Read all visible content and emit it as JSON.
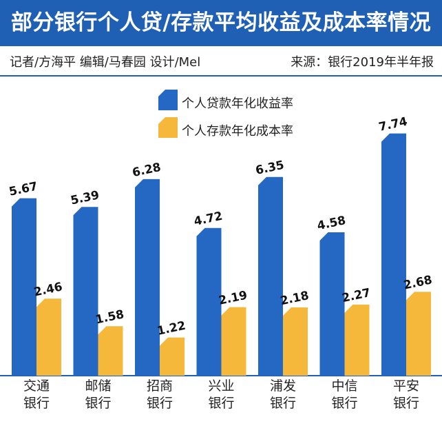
{
  "header": {
    "title": "部分银行个人贷/存款平均收益及成本率情况",
    "credits": "记者/方海平  编辑/马春园  设计/Mel",
    "source": "来源：银行2019年半年报"
  },
  "colors": {
    "header_bg": "#1f5fb4",
    "loan": "#2468c4",
    "deposit": "#f5b83a"
  },
  "chart_data": {
    "type": "bar",
    "title": "部分银行个人贷/存款平均收益及成本率情况",
    "categories": [
      [
        "交通",
        "银行"
      ],
      [
        "邮储",
        "银行"
      ],
      [
        "招商",
        "银行"
      ],
      [
        "兴业",
        "银行"
      ],
      [
        "浦发",
        "银行"
      ],
      [
        "中信",
        "银行"
      ],
      [
        "平安",
        "银行"
      ]
    ],
    "series": [
      {
        "name": "个人贷款年化收益率",
        "values": [
          5.67,
          5.39,
          6.28,
          4.72,
          6.35,
          4.58,
          7.74
        ],
        "color": "#2468c4",
        "labels": [
          "5.67",
          "5.39",
          "6.28",
          "4.72",
          "6.35",
          "4.58",
          "7.74"
        ]
      },
      {
        "name": "个人存款年化成本率",
        "values": [
          2.46,
          1.58,
          1.22,
          2.19,
          2.18,
          2.27,
          2.68
        ],
        "color": "#f5b83a",
        "labels": [
          "2.46",
          "1.58",
          "1.22",
          "2.19",
          "2.18",
          "2.27",
          "2.68"
        ]
      }
    ],
    "ylim": [
      0,
      8.2
    ],
    "grid": false,
    "legend_position": "top-center",
    "xlabel": "",
    "ylabel": ""
  }
}
